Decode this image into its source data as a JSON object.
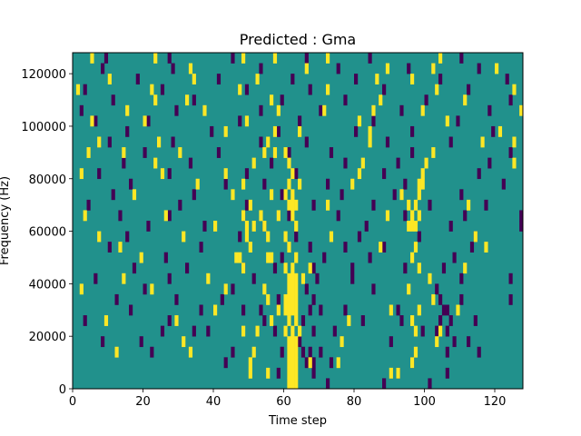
{
  "chart_data": {
    "type": "heatmap",
    "title": "Predicted : Gma",
    "xlabel": "Time step",
    "ylabel": "Frequency (Hz)",
    "xlim": [
      0,
      128
    ],
    "ylim": [
      0,
      128000
    ],
    "x_ticks": [
      0,
      20,
      40,
      60,
      80,
      100,
      120
    ],
    "y_ticks": [
      0,
      20000,
      40000,
      60000,
      80000,
      100000,
      120000
    ],
    "x_tick_labels": [
      "0",
      "20",
      "40",
      "60",
      "80",
      "100",
      "120"
    ],
    "y_tick_labels": [
      "0",
      "20000",
      "40000",
      "60000",
      "80000",
      "100000",
      "120000"
    ],
    "grid": false,
    "n_time_steps": 128,
    "n_frequency_bins": 32,
    "colormap": {
      "background": "#21918c",
      "low": "#440154",
      "high": "#fde725"
    },
    "value_levels": {
      "background": 0,
      "low": -1,
      "high": 1
    },
    "high_cells": [
      [
        61,
        0
      ],
      [
        62,
        0
      ],
      [
        63,
        0
      ],
      [
        55,
        1
      ],
      [
        61,
        1
      ],
      [
        62,
        1
      ],
      [
        63,
        1
      ],
      [
        50,
        1
      ],
      [
        90,
        1
      ],
      [
        92,
        1
      ],
      [
        61,
        2
      ],
      [
        62,
        2
      ],
      [
        63,
        2
      ],
      [
        50,
        2
      ],
      [
        67,
        2
      ],
      [
        75,
        2
      ],
      [
        96,
        2
      ],
      [
        61,
        3
      ],
      [
        62,
        3
      ],
      [
        63,
        3
      ],
      [
        12,
        3
      ],
      [
        33,
        3
      ],
      [
        51,
        3
      ],
      [
        97,
        3
      ],
      [
        61,
        4
      ],
      [
        62,
        4
      ],
      [
        63,
        4
      ],
      [
        31,
        4
      ],
      [
        76,
        4
      ],
      [
        103,
        4
      ],
      [
        48,
        5
      ],
      [
        52,
        5
      ],
      [
        60,
        5
      ],
      [
        62,
        5
      ],
      [
        64,
        5
      ],
      [
        97,
        5
      ],
      [
        104,
        5
      ],
      [
        56,
        6
      ],
      [
        61,
        6
      ],
      [
        63,
        6
      ],
      [
        9,
        6
      ],
      [
        29,
        6
      ],
      [
        78,
        6
      ],
      [
        96,
        6
      ],
      [
        60,
        7
      ],
      [
        61,
        7
      ],
      [
        62,
        7
      ],
      [
        63,
        7
      ],
      [
        40,
        7
      ],
      [
        58,
        7
      ],
      [
        90,
        7
      ],
      [
        98,
        7
      ],
      [
        109,
        7
      ],
      [
        60,
        8
      ],
      [
        61,
        8
      ],
      [
        62,
        8
      ],
      [
        63,
        8
      ],
      [
        55,
        8
      ],
      [
        102,
        8
      ],
      [
        61,
        9
      ],
      [
        62,
        9
      ],
      [
        63,
        9
      ],
      [
        2,
        9
      ],
      [
        22,
        9
      ],
      [
        43,
        9
      ],
      [
        54,
        9
      ],
      [
        95,
        9
      ],
      [
        61,
        10
      ],
      [
        62,
        10
      ],
      [
        63,
        10
      ],
      [
        14,
        10
      ],
      [
        38,
        10
      ],
      [
        65,
        10
      ],
      [
        101,
        10
      ],
      [
        48,
        11
      ],
      [
        60,
        11
      ],
      [
        62,
        11
      ],
      [
        67,
        11
      ],
      [
        98,
        11
      ],
      [
        111,
        11
      ],
      [
        47,
        12
      ],
      [
        56,
        12
      ],
      [
        63,
        12
      ],
      [
        19,
        12
      ],
      [
        46,
        12
      ],
      [
        55,
        12
      ],
      [
        96,
        12
      ],
      [
        13,
        13
      ],
      [
        50,
        13
      ],
      [
        61,
        13
      ],
      [
        87,
        13
      ],
      [
        97,
        13
      ],
      [
        117,
        13
      ],
      [
        49,
        14
      ],
      [
        55,
        14
      ],
      [
        60,
        14
      ],
      [
        7,
        14
      ],
      [
        31,
        14
      ],
      [
        73,
        14
      ],
      [
        114,
        14
      ],
      [
        49,
        15
      ],
      [
        51,
        15
      ],
      [
        63,
        15
      ],
      [
        40,
        15
      ],
      [
        54,
        15
      ],
      [
        95,
        15
      ],
      [
        96,
        15
      ],
      [
        97,
        15
      ],
      [
        96,
        16
      ],
      [
        48,
        16
      ],
      [
        53,
        16
      ],
      [
        62,
        16
      ],
      [
        3,
        16
      ],
      [
        26,
        16
      ],
      [
        58,
        16
      ],
      [
        89,
        16
      ],
      [
        96,
        16
      ],
      [
        98,
        16
      ],
      [
        61,
        17
      ],
      [
        62,
        17
      ],
      [
        63,
        17
      ],
      [
        50,
        17
      ],
      [
        72,
        17
      ],
      [
        95,
        17
      ],
      [
        97,
        17
      ],
      [
        112,
        17
      ],
      [
        56,
        18
      ],
      [
        60,
        18
      ],
      [
        62,
        18
      ],
      [
        17,
        18
      ],
      [
        45,
        18
      ],
      [
        93,
        18
      ],
      [
        98,
        18
      ],
      [
        98,
        19
      ],
      [
        48,
        19
      ],
      [
        61,
        19
      ],
      [
        64,
        19
      ],
      [
        35,
        19
      ],
      [
        79,
        19
      ],
      [
        99,
        19
      ],
      [
        62,
        20
      ],
      [
        2,
        20
      ],
      [
        25,
        20
      ],
      [
        43,
        20
      ],
      [
        81,
        20
      ],
      [
        99,
        20
      ],
      [
        23,
        21
      ],
      [
        51,
        21
      ],
      [
        61,
        21
      ],
      [
        82,
        21
      ],
      [
        100,
        21
      ],
      [
        125,
        21
      ],
      [
        14,
        22
      ],
      [
        54,
        22
      ],
      [
        60,
        22
      ],
      [
        4,
        22
      ],
      [
        30,
        22
      ],
      [
        57,
        22
      ],
      [
        102,
        22
      ],
      [
        7,
        23
      ],
      [
        24,
        23
      ],
      [
        55,
        23
      ],
      [
        84,
        23
      ],
      [
        116,
        23
      ],
      [
        125,
        23
      ],
      [
        43,
        24
      ],
      [
        57,
        24
      ],
      [
        64,
        24
      ],
      [
        84,
        24
      ],
      [
        121,
        24
      ],
      [
        5,
        25
      ],
      [
        20,
        25
      ],
      [
        49,
        25
      ],
      [
        81,
        25
      ],
      [
        106,
        25
      ],
      [
        15,
        26
      ],
      [
        37,
        26
      ],
      [
        58,
        26
      ],
      [
        71,
        26
      ],
      [
        85,
        26
      ],
      [
        99,
        26
      ],
      [
        127,
        26
      ],
      [
        23,
        27
      ],
      [
        32,
        27
      ],
      [
        56,
        27
      ],
      [
        87,
        27
      ],
      [
        111,
        27
      ],
      [
        1,
        28
      ],
      [
        22,
        28
      ],
      [
        47,
        28
      ],
      [
        72,
        28
      ],
      [
        103,
        28
      ],
      [
        125,
        28
      ],
      [
        10,
        29
      ],
      [
        34,
        29
      ],
      [
        52,
        29
      ],
      [
        86,
        29
      ],
      [
        96,
        29
      ],
      [
        33,
        30
      ],
      [
        66,
        30
      ],
      [
        89,
        30
      ],
      [
        102,
        30
      ],
      [
        120,
        30
      ],
      [
        5,
        31
      ],
      [
        23,
        31
      ],
      [
        48,
        31
      ],
      [
        57,
        31
      ],
      [
        72,
        31
      ],
      [
        104,
        31
      ]
    ],
    "low_cells": [
      [
        72,
        0
      ],
      [
        88,
        0
      ],
      [
        101,
        0
      ],
      [
        58,
        1
      ],
      [
        68,
        1
      ],
      [
        92,
        1
      ],
      [
        106,
        1
      ],
      [
        43,
        2
      ],
      [
        66,
        2
      ],
      [
        68,
        2
      ],
      [
        73,
        2
      ],
      [
        96,
        2
      ],
      [
        22,
        3
      ],
      [
        45,
        3
      ],
      [
        59,
        3
      ],
      [
        65,
        3
      ],
      [
        67,
        3
      ],
      [
        70,
        3
      ],
      [
        106,
        3
      ],
      [
        115,
        3
      ],
      [
        8,
        4
      ],
      [
        19,
        4
      ],
      [
        64,
        4
      ],
      [
        90,
        4
      ],
      [
        108,
        4
      ],
      [
        112,
        4
      ],
      [
        25,
        5
      ],
      [
        34,
        5
      ],
      [
        38,
        5
      ],
      [
        57,
        5
      ],
      [
        68,
        5
      ],
      [
        74,
        5
      ],
      [
        99,
        5
      ],
      [
        103,
        5
      ],
      [
        106,
        5
      ],
      [
        3,
        6
      ],
      [
        27,
        6
      ],
      [
        54,
        6
      ],
      [
        65,
        6
      ],
      [
        82,
        6
      ],
      [
        93,
        6
      ],
      [
        104,
        6
      ],
      [
        107,
        6
      ],
      [
        114,
        6
      ],
      [
        16,
        7
      ],
      [
        36,
        7
      ],
      [
        48,
        7
      ],
      [
        53,
        7
      ],
      [
        67,
        7
      ],
      [
        70,
        7
      ],
      [
        77,
        7
      ],
      [
        92,
        7
      ],
      [
        105,
        7
      ],
      [
        106,
        7
      ],
      [
        12,
        8
      ],
      [
        29,
        8
      ],
      [
        42,
        8
      ],
      [
        58,
        8
      ],
      [
        68,
        8
      ],
      [
        104,
        8
      ],
      [
        110,
        8
      ],
      [
        124,
        8
      ],
      [
        20,
        9
      ],
      [
        45,
        9
      ],
      [
        66,
        9
      ],
      [
        85,
        9
      ],
      [
        103,
        9
      ],
      [
        6,
        10
      ],
      [
        27,
        10
      ],
      [
        51,
        10
      ],
      [
        69,
        10
      ],
      [
        79,
        10
      ],
      [
        110,
        10
      ],
      [
        124,
        10
      ],
      [
        17,
        11
      ],
      [
        32,
        11
      ],
      [
        48,
        11
      ],
      [
        57,
        11
      ],
      [
        68,
        11
      ],
      [
        79,
        11
      ],
      [
        94,
        11
      ],
      [
        105,
        11
      ],
      [
        26,
        12
      ],
      [
        59,
        12
      ],
      [
        71,
        12
      ],
      [
        84,
        12
      ],
      [
        108,
        12
      ],
      [
        10,
        13
      ],
      [
        36,
        13
      ],
      [
        67,
        13
      ],
      [
        77,
        13
      ],
      [
        88,
        13
      ],
      [
        113,
        13
      ],
      [
        15,
        14
      ],
      [
        47,
        14
      ],
      [
        63,
        14
      ],
      [
        81,
        14
      ],
      [
        98,
        14
      ],
      [
        114,
        14
      ],
      [
        21,
        15
      ],
      [
        37,
        15
      ],
      [
        54,
        15
      ],
      [
        83,
        15
      ],
      [
        107,
        15
      ],
      [
        127,
        15
      ],
      [
        13,
        16
      ],
      [
        27,
        16
      ],
      [
        48,
        16
      ],
      [
        61,
        16
      ],
      [
        75,
        16
      ],
      [
        94,
        16
      ],
      [
        111,
        16
      ],
      [
        127,
        16
      ],
      [
        4,
        17
      ],
      [
        30,
        17
      ],
      [
        49,
        17
      ],
      [
        68,
        17
      ],
      [
        85,
        17
      ],
      [
        101,
        17
      ],
      [
        117,
        17
      ],
      [
        11,
        18
      ],
      [
        34,
        18
      ],
      [
        59,
        18
      ],
      [
        76,
        18
      ],
      [
        91,
        18
      ],
      [
        110,
        18
      ],
      [
        16,
        19
      ],
      [
        43,
        19
      ],
      [
        54,
        19
      ],
      [
        72,
        19
      ],
      [
        94,
        19
      ],
      [
        122,
        19
      ],
      [
        7,
        20
      ],
      [
        27,
        20
      ],
      [
        49,
        20
      ],
      [
        63,
        20
      ],
      [
        88,
        20
      ],
      [
        115,
        20
      ],
      [
        14,
        21
      ],
      [
        33,
        21
      ],
      [
        56,
        21
      ],
      [
        77,
        21
      ],
      [
        92,
        21
      ],
      [
        118,
        21
      ],
      [
        20,
        22
      ],
      [
        41,
        22
      ],
      [
        61,
        22
      ],
      [
        73,
        22
      ],
      [
        96,
        22
      ],
      [
        124,
        22
      ],
      [
        10,
        23
      ],
      [
        28,
        23
      ],
      [
        53,
        23
      ],
      [
        66,
        23
      ],
      [
        89,
        23
      ],
      [
        107,
        23
      ],
      [
        15,
        24
      ],
      [
        39,
        24
      ],
      [
        58,
        24
      ],
      [
        80,
        24
      ],
      [
        96,
        24
      ],
      [
        119,
        24
      ],
      [
        6,
        25
      ],
      [
        21,
        25
      ],
      [
        47,
        25
      ],
      [
        64,
        25
      ],
      [
        85,
        25
      ],
      [
        109,
        25
      ],
      [
        2,
        26
      ],
      [
        29,
        26
      ],
      [
        53,
        26
      ],
      [
        70,
        26
      ],
      [
        93,
        26
      ],
      [
        118,
        26
      ],
      [
        11,
        27
      ],
      [
        34,
        27
      ],
      [
        59,
        27
      ],
      [
        77,
        27
      ],
      [
        100,
        27
      ],
      [
        124,
        27
      ],
      [
        3,
        28
      ],
      [
        25,
        28
      ],
      [
        49,
        28
      ],
      [
        67,
        28
      ],
      [
        88,
        28
      ],
      [
        112,
        28
      ],
      [
        18,
        29
      ],
      [
        41,
        29
      ],
      [
        62,
        29
      ],
      [
        80,
        29
      ],
      [
        104,
        29
      ],
      [
        123,
        29
      ],
      [
        8,
        30
      ],
      [
        28,
        30
      ],
      [
        53,
        30
      ],
      [
        75,
        30
      ],
      [
        95,
        30
      ],
      [
        115,
        30
      ],
      [
        9,
        31
      ],
      [
        27,
        31
      ],
      [
        45,
        31
      ],
      [
        66,
        31
      ],
      [
        84,
        31
      ],
      [
        110,
        31
      ]
    ]
  }
}
